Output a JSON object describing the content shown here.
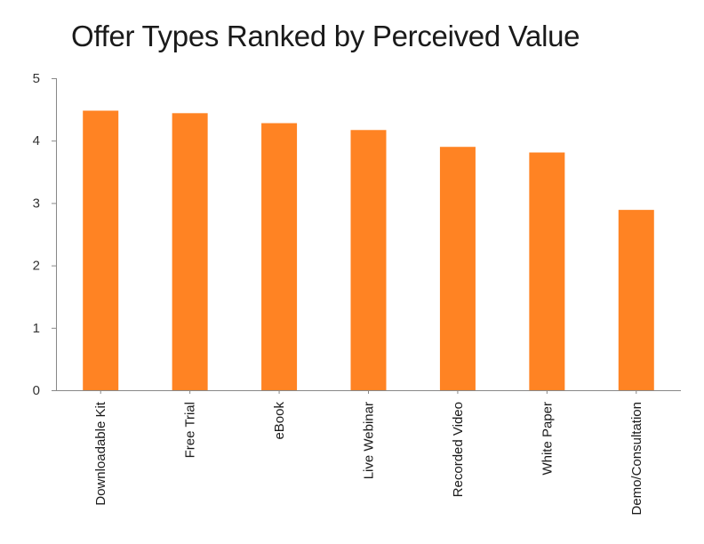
{
  "chart_data": {
    "type": "bar",
    "title": "Offer Types Ranked by Perceived Value",
    "xlabel": "",
    "ylabel": "",
    "categories": [
      "Downloadable Kit",
      "Free Trial",
      "eBook",
      "Live Webinar",
      "Recorded Video",
      "White Paper",
      "Demo/Consultation"
    ],
    "values": [
      4.48,
      4.44,
      4.28,
      4.17,
      3.9,
      3.81,
      2.89
    ],
    "ylim": [
      0,
      5
    ],
    "yticks": [
      "0",
      "1",
      "2",
      "3",
      "4",
      "5"
    ],
    "bar_color": "#FF8323",
    "grid": false,
    "legend": "none"
  }
}
